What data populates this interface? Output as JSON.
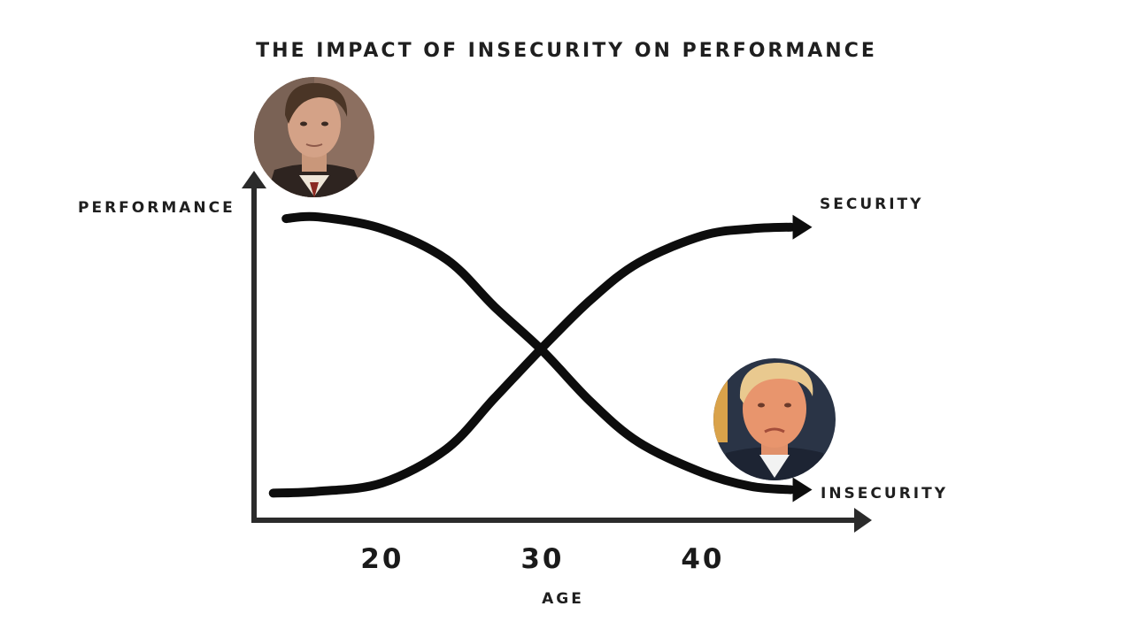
{
  "chart_data": {
    "type": "line",
    "title": "THE IMPACT OF INSECURITY ON PERFORMANCE",
    "xlabel": "AGE",
    "ylabel": "PERFORMANCE",
    "xlim": [
      12,
      50
    ],
    "ylim": [
      0,
      100
    ],
    "x_ticks": [
      {
        "value": 20,
        "label": "20"
      },
      {
        "value": 30,
        "label": "30"
      },
      {
        "value": 40,
        "label": "40"
      }
    ],
    "series": [
      {
        "name": "SECURITY",
        "x": [
          13.2,
          16,
          20,
          24,
          27,
          30,
          33,
          36,
          40,
          43,
          45.5
        ],
        "values": [
          8,
          8.5,
          11,
          21,
          36,
          51,
          65,
          76,
          84,
          86,
          86.5
        ]
      },
      {
        "name": "INSECURITY",
        "x": [
          14,
          16,
          20,
          24,
          27,
          30,
          33,
          36,
          40,
          43,
          45.5
        ],
        "values": [
          89,
          89.5,
          86,
          77,
          63,
          50,
          35,
          23,
          14,
          10,
          9
        ]
      }
    ],
    "grid": false,
    "legend": "none",
    "annotations": [
      {
        "type": "portrait",
        "icon": "portrait-young-man-icon",
        "near": "start of INSECURITY curve"
      },
      {
        "type": "portrait",
        "icon": "portrait-older-man-icon",
        "near": "end of INSECURITY curve"
      }
    ]
  },
  "colors": {
    "axis": "#2b2b2b",
    "line": "#0d0d0d",
    "text": "#1f1f1f",
    "background": "#ffffff"
  }
}
